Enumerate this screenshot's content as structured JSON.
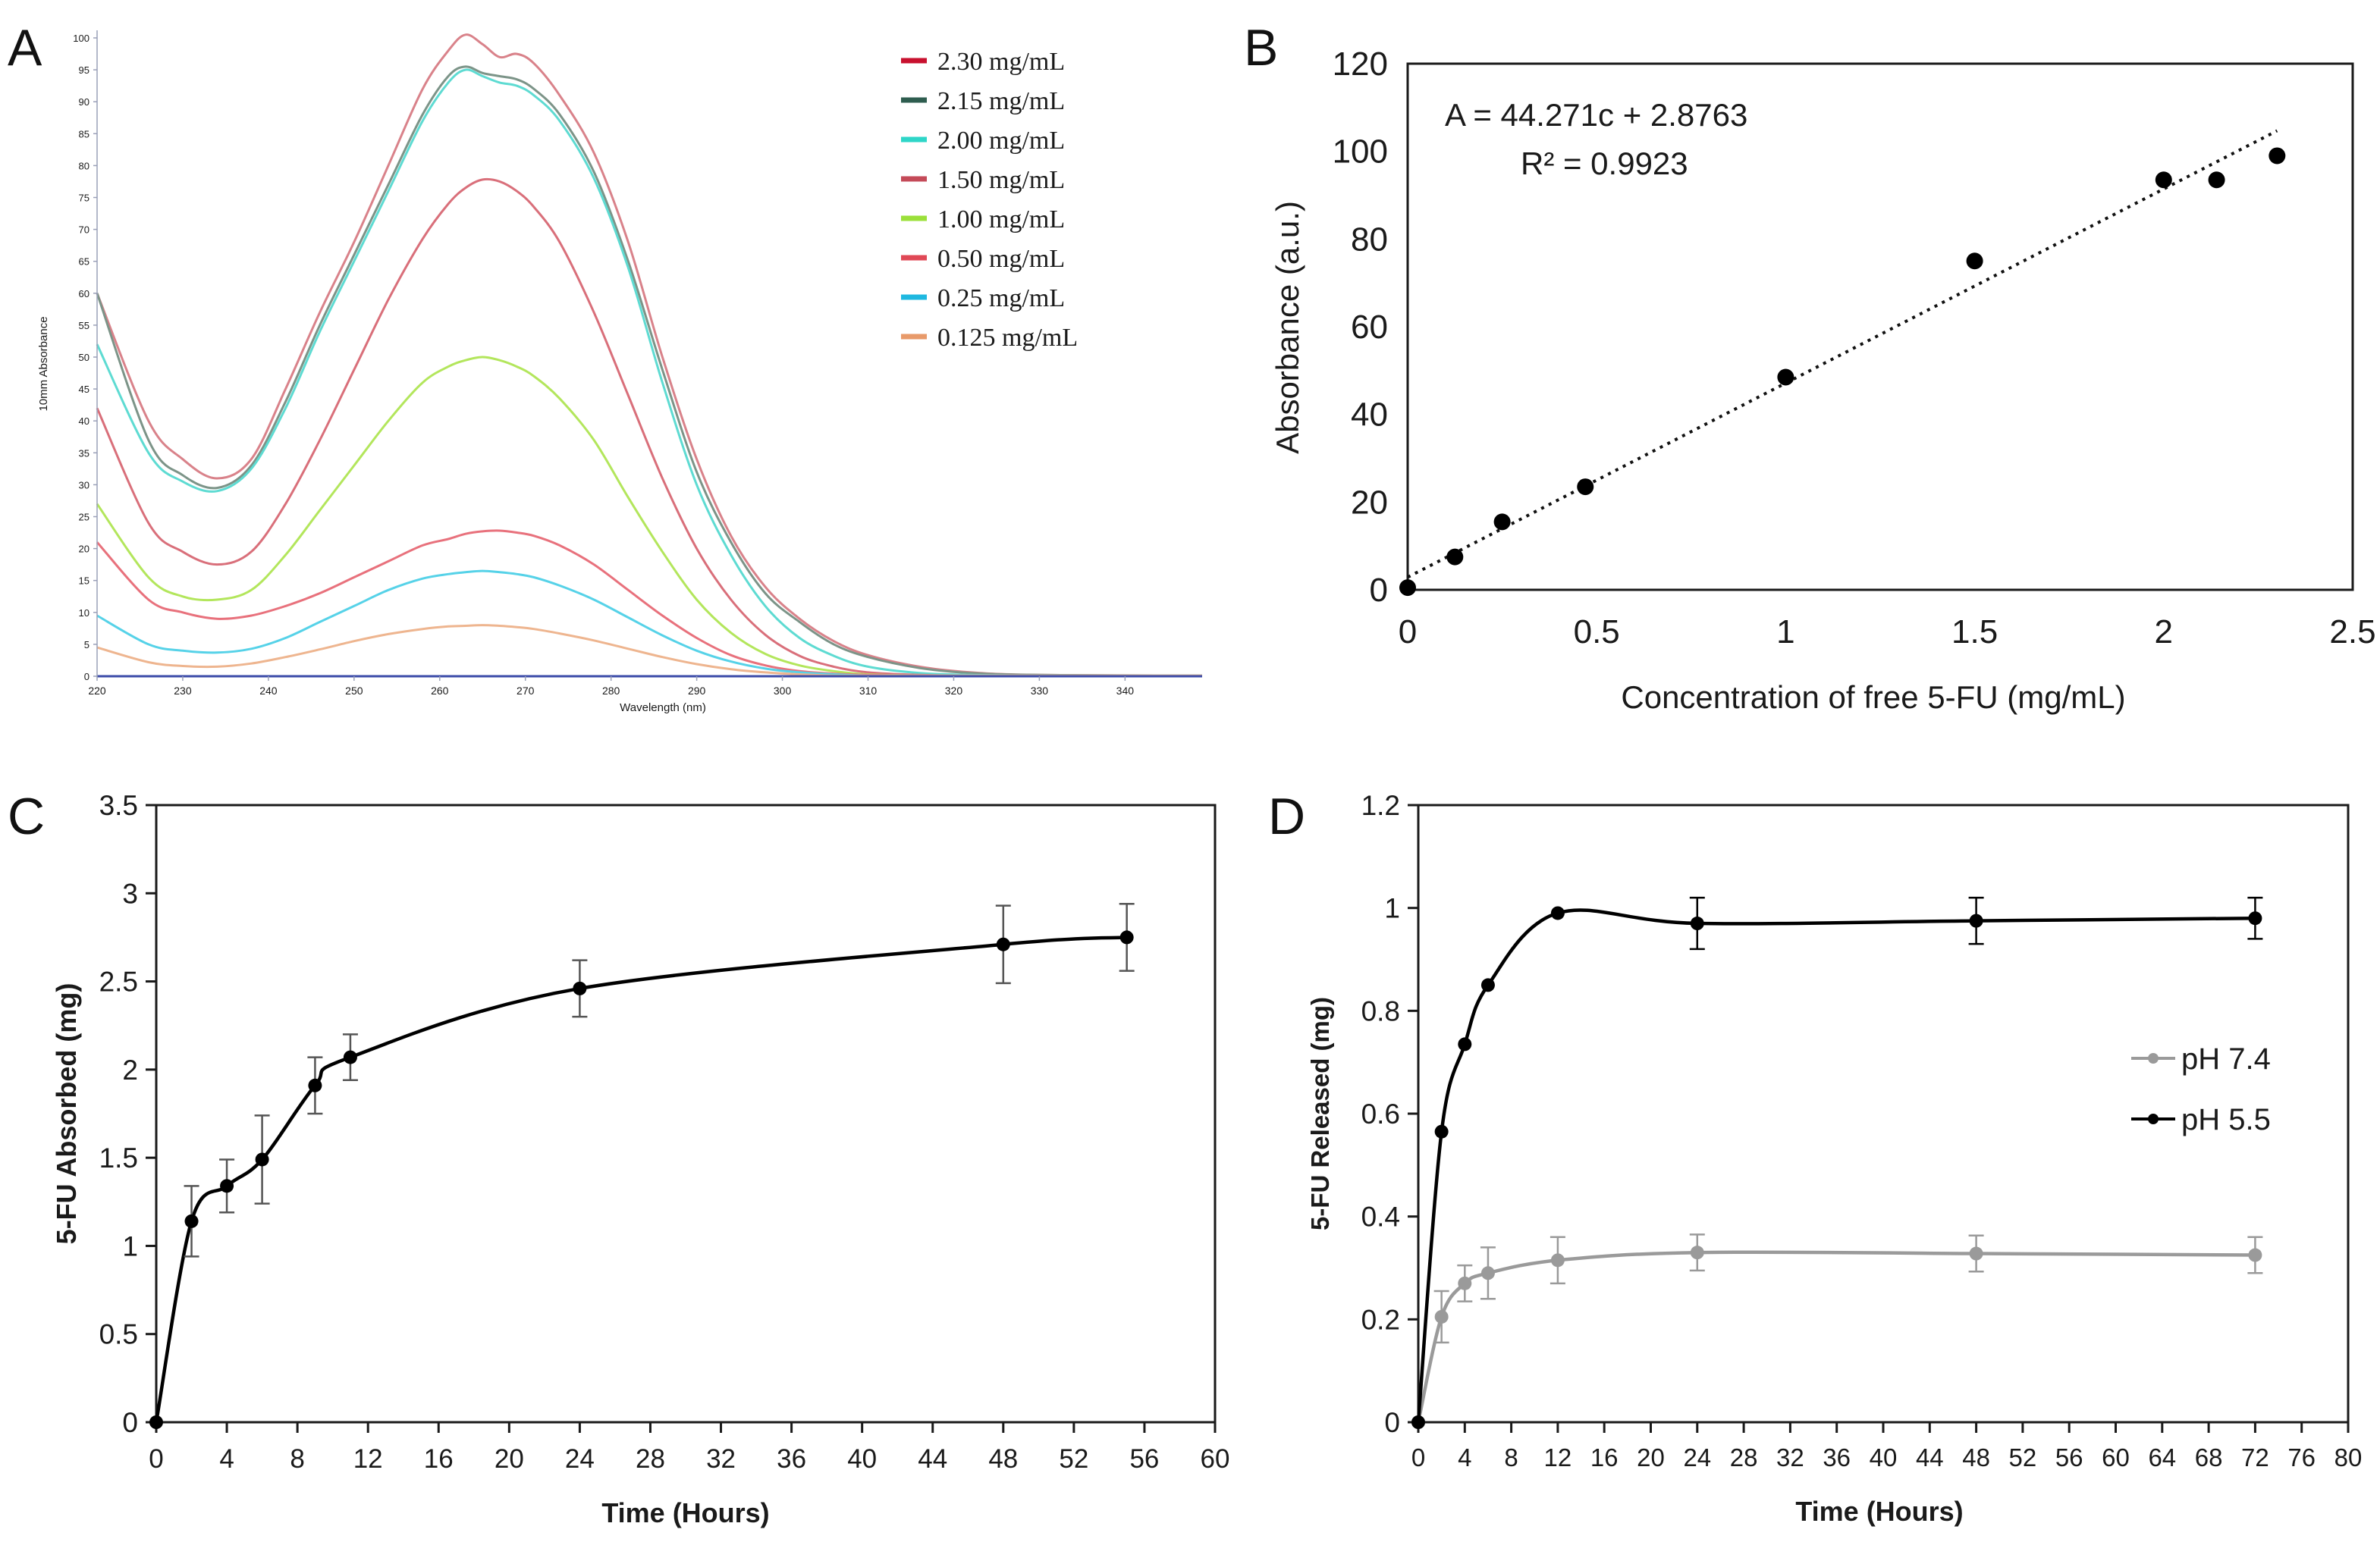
{
  "figure_type": "multi-panel",
  "chart_data": [
    {
      "panel": "A",
      "type": "line",
      "title": "",
      "xlabel": "Wavelength (nm)",
      "ylabel": "10mm Absorbance",
      "xlim": [
        220,
        349
      ],
      "ylim": [
        0,
        100
      ],
      "xticks": [
        220,
        230,
        240,
        250,
        260,
        270,
        280,
        290,
        300,
        310,
        320,
        330,
        340
      ],
      "yticks": [
        0,
        5,
        10,
        15,
        20,
        25,
        30,
        35,
        40,
        45,
        50,
        55,
        60,
        65,
        70,
        75,
        80,
        85,
        90,
        95,
        100
      ],
      "legend_position": "top-right",
      "series": [
        {
          "name": "2.30 mg/mL",
          "color": "#d9828a",
          "legend_color": "#c8102e",
          "x": [
            220,
            226,
            230,
            234,
            238,
            242,
            246,
            250,
            254,
            258,
            261,
            263,
            265,
            267,
            269,
            271,
            274,
            278,
            282,
            286,
            290,
            294,
            298,
            302,
            306,
            310,
            316,
            322,
            330,
            349
          ],
          "y": [
            60,
            40,
            34,
            31,
            34,
            45,
            57,
            68,
            80,
            92,
            98,
            100.5,
            99,
            97,
            97.5,
            96,
            91,
            82,
            68,
            50,
            34,
            22,
            14,
            9,
            5.5,
            3.3,
            1.5,
            0.6,
            0.2,
            0.1
          ]
        },
        {
          "name": "2.15 mg/mL",
          "color": "#7c9488",
          "legend_color": "#2e5d4f",
          "x": [
            220,
            226,
            230,
            234,
            238,
            242,
            246,
            250,
            254,
            258,
            261,
            263,
            265,
            267,
            269,
            271,
            274,
            278,
            282,
            286,
            290,
            294,
            298,
            302,
            306,
            310,
            316,
            322,
            330,
            349
          ],
          "y": [
            60,
            37,
            31.5,
            29.5,
            33,
            43,
            55,
            66,
            77,
            88,
            94,
            95.5,
            94.5,
            94,
            93.5,
            92,
            88,
            79,
            65,
            48,
            32,
            21,
            13,
            8.5,
            5,
            3,
            1.3,
            0.5,
            0.2,
            0.1
          ]
        },
        {
          "name": "2.00 mg/mL",
          "color": "#5edbd2",
          "legend_color": "#2ed6c8",
          "x": [
            220,
            226,
            230,
            234,
            238,
            242,
            246,
            250,
            254,
            258,
            261,
            263,
            265,
            267,
            269,
            271,
            274,
            278,
            282,
            286,
            290,
            294,
            298,
            302,
            306,
            310,
            316,
            322,
            330,
            349
          ],
          "y": [
            52,
            35,
            30.5,
            29,
            32.5,
            42,
            54,
            65,
            76,
            87,
            93,
            95,
            94,
            93,
            92.5,
            91,
            87,
            78,
            64,
            46,
            30,
            19,
            11,
            6,
            3.2,
            1.5,
            0.5,
            0.2,
            0.1,
            0.1
          ]
        },
        {
          "name": "1.50 mg/mL",
          "color": "#d96f7a",
          "legend_color": "#c44a58",
          "x": [
            220,
            226,
            230,
            234,
            238,
            242,
            246,
            250,
            254,
            258,
            261,
            263,
            265,
            267,
            269,
            271,
            274,
            278,
            282,
            286,
            290,
            294,
            298,
            302,
            306,
            310,
            316,
            322,
            330,
            349
          ],
          "y": [
            42,
            24,
            19.5,
            17.5,
            19.5,
            27,
            37,
            48,
            59,
            68.5,
            74,
            76.5,
            77.8,
            77.5,
            76,
            73.5,
            68,
            57,
            44,
            31,
            20,
            12,
            6.5,
            3.2,
            1.5,
            0.6,
            0.2,
            0.1,
            0.1,
            0.1
          ]
        },
        {
          "name": "1.00 mg/mL",
          "color": "#b3e65c",
          "legend_color": "#9be03a",
          "x": [
            220,
            226,
            230,
            234,
            238,
            242,
            246,
            250,
            254,
            258,
            261,
            263,
            265,
            267,
            269,
            271,
            274,
            278,
            282,
            286,
            290,
            294,
            298,
            302,
            306,
            310,
            316,
            322,
            330,
            349
          ],
          "y": [
            27,
            15.5,
            12.5,
            12,
            13.5,
            19,
            26,
            33,
            40,
            46,
            48.5,
            49.5,
            50,
            49.5,
            48.5,
            47,
            43.5,
            37,
            28,
            19.5,
            12,
            6.8,
            3.5,
            1.7,
            0.8,
            0.3,
            0.1,
            0.1,
            0.1,
            0.1
          ]
        },
        {
          "name": "0.50 mg/mL",
          "color": "#e8717c",
          "legend_color": "#e04856",
          "x": [
            220,
            226,
            230,
            234,
            238,
            242,
            246,
            250,
            254,
            258,
            261,
            263,
            265,
            267,
            269,
            271,
            274,
            278,
            282,
            286,
            290,
            294,
            298,
            302,
            306,
            310,
            316,
            322,
            330,
            349
          ],
          "y": [
            21,
            12,
            10,
            9,
            9.5,
            11,
            13,
            15.5,
            18,
            20.5,
            21.5,
            22.3,
            22.7,
            22.8,
            22.5,
            22,
            20.5,
            17.5,
            13.5,
            9.5,
            6,
            3.3,
            1.7,
            0.8,
            0.4,
            0.2,
            0.1,
            0.1,
            0.1,
            0.1
          ]
        },
        {
          "name": "0.25 mg/mL",
          "color": "#56d2e8",
          "legend_color": "#1fb8e0",
          "x": [
            220,
            226,
            230,
            234,
            238,
            242,
            246,
            250,
            254,
            258,
            261,
            263,
            265,
            267,
            269,
            271,
            274,
            278,
            282,
            286,
            290,
            294,
            298,
            302,
            306,
            310,
            316,
            322,
            330,
            349
          ],
          "y": [
            9.5,
            5,
            4,
            3.7,
            4.3,
            6,
            8.5,
            11,
            13.5,
            15.3,
            16,
            16.3,
            16.5,
            16.3,
            16,
            15.5,
            14.2,
            12,
            9.2,
            6.4,
            4,
            2.3,
            1.2,
            0.6,
            0.3,
            0.1,
            0.1,
            0.1,
            0.1,
            0.1
          ]
        },
        {
          "name": "0.125 mg/mL",
          "color": "#eeb58f",
          "legend_color": "#e89a6a",
          "x": [
            220,
            226,
            230,
            234,
            238,
            242,
            246,
            250,
            254,
            258,
            261,
            263,
            265,
            267,
            269,
            271,
            274,
            278,
            282,
            286,
            290,
            294,
            298,
            302,
            306,
            310,
            316,
            322,
            330,
            349
          ],
          "y": [
            4.5,
            2.2,
            1.6,
            1.5,
            2,
            3,
            4.2,
            5.5,
            6.6,
            7.4,
            7.8,
            7.9,
            8,
            7.9,
            7.7,
            7.4,
            6.7,
            5.6,
            4.3,
            3,
            1.9,
            1.1,
            0.6,
            0.3,
            0.1,
            0.1,
            0.1,
            0.1,
            0.1,
            0.1
          ]
        }
      ]
    },
    {
      "panel": "B",
      "type": "scatter",
      "title": "",
      "xlabel": "Concentration of free 5-FU (mg/mL)",
      "ylabel": "Absorbance (a.u.)",
      "xlim": [
        0,
        2.5
      ],
      "ylim": [
        0,
        120
      ],
      "xticks": [
        0,
        0.5,
        1,
        1.5,
        2,
        2.5
      ],
      "yticks": [
        0,
        20,
        40,
        60,
        80,
        100,
        120
      ],
      "annotation_line1": "A = 44.271c + 2.8763",
      "annotation_line2": "R² = 0.9923",
      "trendline": {
        "slope": 44.271,
        "intercept": 2.8763,
        "x_range": [
          0,
          2.3
        ],
        "style": "dotted"
      },
      "x": [
        0,
        0.125,
        0.25,
        0.47,
        1.0,
        1.5,
        2.0,
        2.14,
        2.3
      ],
      "y": [
        0.5,
        7.5,
        15.5,
        23.5,
        48.5,
        75,
        93.5,
        93.5,
        99
      ]
    },
    {
      "panel": "C",
      "type": "line",
      "title": "",
      "xlabel": "Time (Hours)",
      "ylabel": "5-FU Absorbed (mg)",
      "xlim": [
        0,
        60
      ],
      "ylim": [
        0,
        3.5
      ],
      "xticks": [
        0,
        4,
        8,
        12,
        16,
        20,
        24,
        28,
        32,
        36,
        40,
        44,
        48,
        52,
        56,
        60
      ],
      "yticks": [
        0,
        0.5,
        1,
        1.5,
        2,
        2.5,
        3,
        3.5
      ],
      "series": [
        {
          "name": "5-FU Absorbed",
          "color": "#000000",
          "x": [
            0,
            2,
            4,
            6,
            9,
            11,
            24,
            48,
            55
          ],
          "y": [
            0,
            1.14,
            1.34,
            1.49,
            1.91,
            2.07,
            2.46,
            2.71,
            2.75
          ],
          "error": [
            0,
            0.2,
            0.15,
            0.25,
            0.16,
            0.13,
            0.16,
            0.22,
            0.19
          ]
        }
      ]
    },
    {
      "panel": "D",
      "type": "line",
      "title": "",
      "xlabel": "Time (Hours)",
      "ylabel": "5-FU Released (mg)",
      "xlim": [
        0,
        80
      ],
      "ylim": [
        0,
        1.2
      ],
      "xticks": [
        0,
        4,
        8,
        12,
        16,
        20,
        24,
        28,
        32,
        36,
        40,
        44,
        48,
        52,
        56,
        60,
        64,
        68,
        72,
        76,
        80
      ],
      "yticks": [
        0,
        0.2,
        0.4,
        0.6,
        0.8,
        1,
        1.2
      ],
      "legend_position": "right",
      "series": [
        {
          "name": "pH 7.4",
          "color": "#9a9a9a",
          "x": [
            0,
            2,
            4,
            6,
            12,
            24,
            48,
            72
          ],
          "y": [
            0,
            0.205,
            0.27,
            0.29,
            0.315,
            0.33,
            0.328,
            0.325
          ],
          "error": [
            0,
            0.05,
            0.035,
            0.05,
            0.045,
            0.035,
            0.035,
            0.035
          ]
        },
        {
          "name": "pH 5.5",
          "color": "#000000",
          "x": [
            0,
            2,
            4,
            6,
            12,
            24,
            48,
            72
          ],
          "y": [
            0,
            0.565,
            0.735,
            0.85,
            0.99,
            0.97,
            0.975,
            0.98
          ],
          "error": [
            0,
            0,
            0,
            0,
            0,
            0.05,
            0.045,
            0.04
          ]
        }
      ]
    }
  ]
}
